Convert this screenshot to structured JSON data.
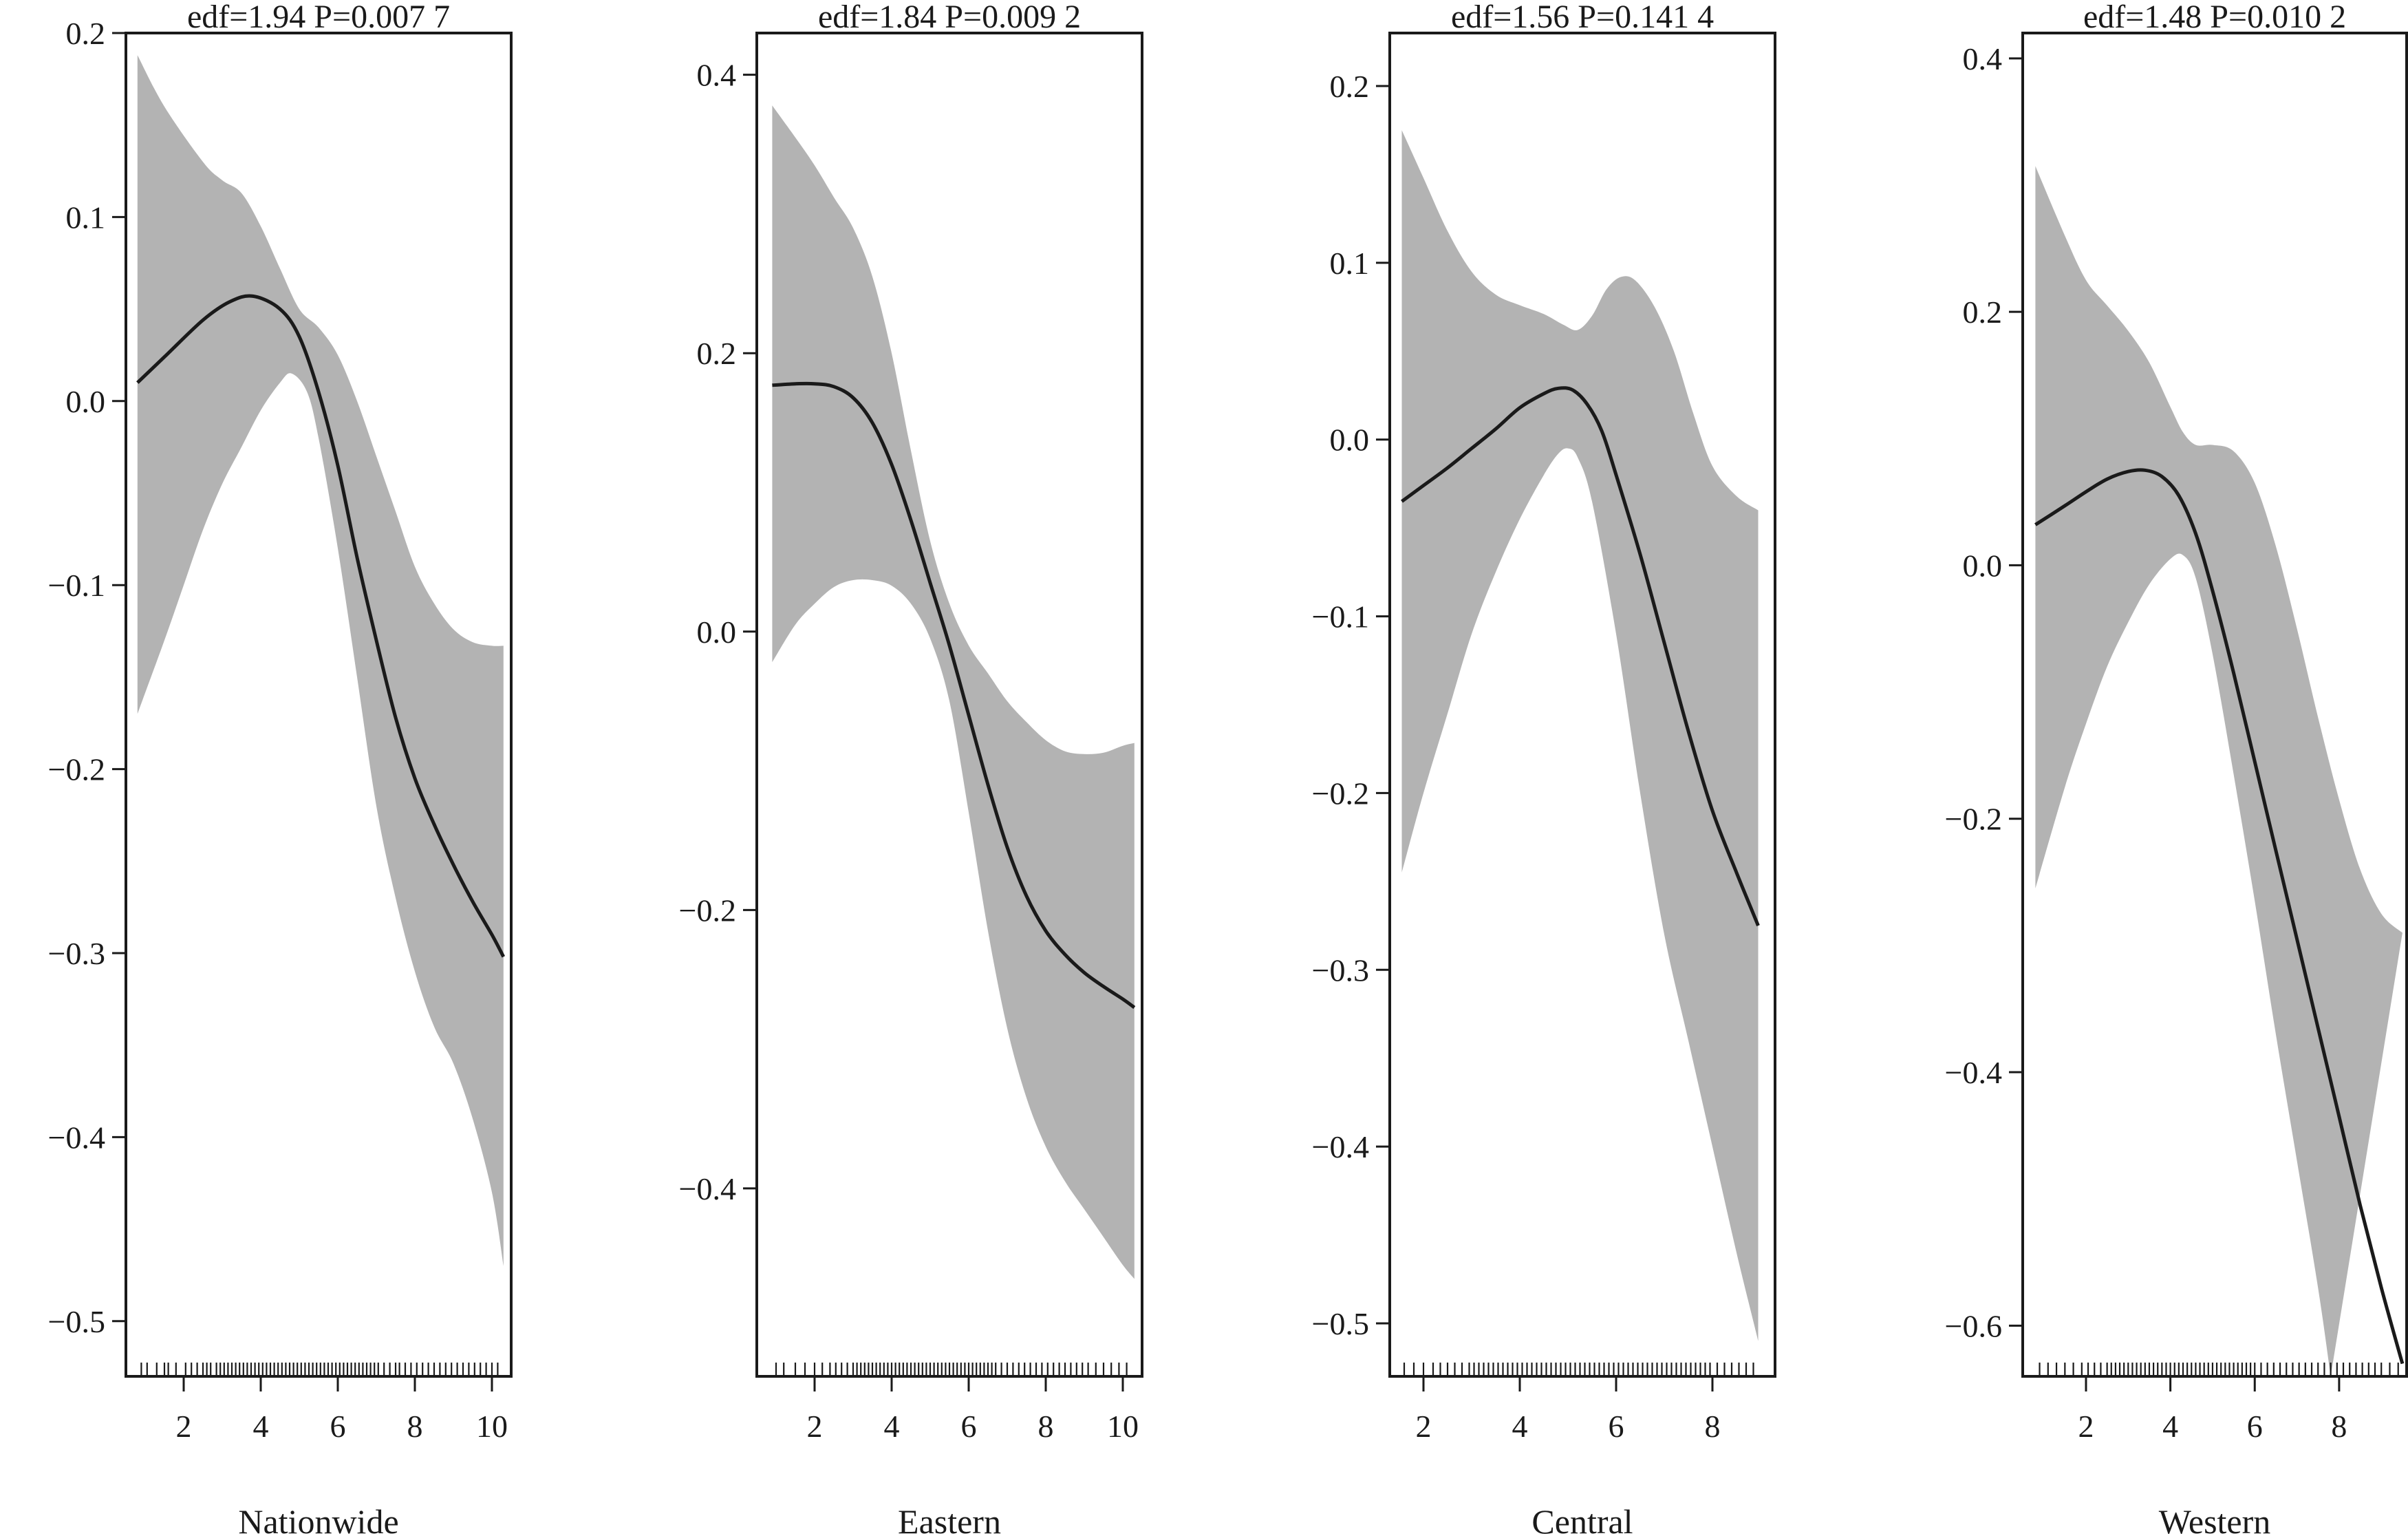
{
  "chart_data": [
    {
      "type": "line",
      "title": "edf=1.94 P=0.007 7",
      "xlabel": "Nationwide",
      "ylabel": "",
      "xlim": [
        0.5,
        10.5
      ],
      "ylim": [
        -0.53,
        0.2
      ],
      "xticks": [
        2,
        4,
        6,
        8,
        10
      ],
      "yticks": [
        0.2,
        0.1,
        0.0,
        -0.1,
        -0.2,
        -0.3,
        -0.4,
        -0.5
      ],
      "ytick_labels": [
        "0.2",
        "0.1",
        "0.0",
        "−0.1",
        "−0.2",
        "−0.3",
        "−0.4",
        "−0.5"
      ],
      "band_color": "#b3b3b3",
      "line_color": "#1a1a1a",
      "grid": false,
      "fit": {
        "x": [
          0.8,
          1.5,
          2.5,
          3.2,
          3.8,
          4.5,
          5.0,
          5.5,
          6.0,
          6.5,
          7.0,
          7.5,
          8.0,
          8.5,
          9.0,
          9.5,
          10.0,
          10.3
        ],
        "y": [
          0.01,
          0.024,
          0.044,
          0.054,
          0.057,
          0.05,
          0.035,
          0.005,
          -0.035,
          -0.085,
          -0.13,
          -0.172,
          -0.205,
          -0.23,
          -0.252,
          -0.272,
          -0.29,
          -0.302
        ]
      },
      "upper": {
        "x": [
          0.8,
          1.5,
          2.5,
          3.0,
          3.5,
          4.0,
          4.5,
          5.0,
          5.5,
          6.0,
          6.5,
          7.0,
          7.5,
          8.0,
          8.5,
          9.0,
          9.5,
          10.0,
          10.3
        ],
        "y": [
          0.188,
          0.16,
          0.13,
          0.12,
          0.113,
          0.095,
          0.072,
          0.05,
          0.04,
          0.025,
          0.0,
          -0.03,
          -0.06,
          -0.09,
          -0.11,
          -0.124,
          -0.131,
          -0.133,
          -0.133
        ]
      },
      "lower": {
        "x": [
          0.8,
          1.5,
          2.0,
          2.5,
          3.0,
          3.5,
          4.0,
          4.5,
          4.8,
          5.2,
          5.5,
          6.0,
          6.5,
          7.0,
          7.5,
          8.0,
          8.5,
          9.0,
          9.5,
          10.0,
          10.3
        ],
        "y": [
          -0.17,
          -0.13,
          -0.1,
          -0.07,
          -0.045,
          -0.025,
          -0.005,
          0.01,
          0.015,
          0.005,
          -0.02,
          -0.08,
          -0.15,
          -0.22,
          -0.27,
          -0.31,
          -0.34,
          -0.36,
          -0.39,
          -0.43,
          -0.47
        ]
      },
      "rug": [
        0.9,
        1.05,
        1.3,
        1.5,
        1.6,
        1.8,
        2.05,
        2.2,
        2.35,
        2.5,
        2.6,
        2.7,
        2.85,
        2.95,
        3.05,
        3.15,
        3.25,
        3.35,
        3.45,
        3.55,
        3.65,
        3.75,
        3.85,
        3.95,
        4.05,
        4.15,
        4.25,
        4.35,
        4.45,
        4.55,
        4.65,
        4.75,
        4.85,
        4.95,
        5.05,
        5.15,
        5.25,
        5.35,
        5.45,
        5.55,
        5.65,
        5.75,
        5.85,
        5.95,
        6.05,
        6.15,
        6.25,
        6.35,
        6.45,
        6.55,
        6.65,
        6.75,
        6.85,
        6.95,
        7.05,
        7.2,
        7.35,
        7.5,
        7.6,
        7.75,
        7.9,
        8.05,
        8.2,
        8.35,
        8.5,
        8.65,
        8.8,
        8.95,
        9.1,
        9.25,
        9.4,
        9.55,
        9.7,
        9.85,
        10.0,
        10.15
      ]
    },
    {
      "type": "line",
      "title": "edf=1.84 P=0.009 2",
      "xlabel": "Eastern",
      "ylabel": "",
      "xlim": [
        0.5,
        10.5
      ],
      "ylim": [
        -0.535,
        0.43
      ],
      "xticks": [
        2,
        4,
        6,
        8,
        10
      ],
      "yticks": [
        0.4,
        0.2,
        0.0,
        -0.2,
        -0.4
      ],
      "ytick_labels": [
        "0.4",
        "0.2",
        "0.0",
        "−0.2",
        "−0.4"
      ],
      "band_color": "#b3b3b3",
      "line_color": "#1a1a1a",
      "grid": false,
      "fit": {
        "x": [
          0.9,
          1.5,
          2.0,
          2.5,
          3.0,
          3.5,
          4.0,
          4.5,
          5.0,
          5.5,
          6.0,
          6.5,
          7.0,
          7.5,
          8.0,
          8.5,
          9.0,
          9.5,
          10.0,
          10.3
        ],
        "y": [
          0.177,
          0.178,
          0.178,
          0.176,
          0.168,
          0.15,
          0.12,
          0.08,
          0.035,
          -0.01,
          -0.06,
          -0.11,
          -0.155,
          -0.19,
          -0.215,
          -0.232,
          -0.245,
          -0.255,
          -0.264,
          -0.27
        ]
      },
      "upper": {
        "x": [
          0.9,
          1.5,
          2.0,
          2.5,
          3.0,
          3.5,
          4.0,
          4.5,
          5.0,
          5.5,
          6.0,
          6.5,
          7.0,
          7.5,
          8.0,
          8.5,
          9.0,
          9.5,
          10.0,
          10.3
        ],
        "y": [
          0.378,
          0.355,
          0.335,
          0.312,
          0.29,
          0.255,
          0.2,
          0.13,
          0.065,
          0.02,
          -0.01,
          -0.03,
          -0.05,
          -0.065,
          -0.078,
          -0.086,
          -0.088,
          -0.087,
          -0.082,
          -0.08
        ]
      },
      "lower": {
        "x": [
          0.9,
          1.5,
          2.0,
          2.5,
          3.0,
          3.5,
          4.0,
          4.5,
          5.0,
          5.5,
          6.0,
          6.5,
          7.0,
          7.5,
          8.0,
          8.5,
          9.0,
          9.5,
          10.0,
          10.3
        ],
        "y": [
          -0.022,
          0.005,
          0.02,
          0.032,
          0.037,
          0.037,
          0.033,
          0.02,
          -0.005,
          -0.05,
          -0.13,
          -0.215,
          -0.285,
          -0.335,
          -0.37,
          -0.395,
          -0.415,
          -0.435,
          -0.455,
          -0.465
        ]
      },
      "rug": [
        1.0,
        1.2,
        1.5,
        1.75,
        2.0,
        2.2,
        2.4,
        2.55,
        2.7,
        2.85,
        3.0,
        3.1,
        3.2,
        3.3,
        3.4,
        3.5,
        3.6,
        3.7,
        3.8,
        3.9,
        4.0,
        4.1,
        4.2,
        4.3,
        4.4,
        4.5,
        4.6,
        4.7,
        4.8,
        4.9,
        5.0,
        5.1,
        5.2,
        5.3,
        5.4,
        5.5,
        5.6,
        5.7,
        5.8,
        5.9,
        6.0,
        6.1,
        6.2,
        6.3,
        6.4,
        6.5,
        6.6,
        6.7,
        6.85,
        7.0,
        7.15,
        7.3,
        7.45,
        7.6,
        7.75,
        7.9,
        8.05,
        8.2,
        8.35,
        8.5,
        8.65,
        8.8,
        8.95,
        9.1,
        9.3,
        9.5,
        9.7,
        9.9,
        10.1
      ]
    },
    {
      "type": "line",
      "title": "edf=1.56 P=0.141 4",
      "xlabel": "Central",
      "ylabel": "",
      "xlim": [
        1.3,
        9.3
      ],
      "ylim": [
        -0.53,
        0.23
      ],
      "xticks": [
        2,
        4,
        6,
        8
      ],
      "yticks": [
        0.2,
        0.1,
        0.0,
        -0.1,
        -0.2,
        -0.3,
        -0.4,
        -0.5
      ],
      "ytick_labels": [
        "0.2",
        "0.1",
        "0.0",
        "−0.1",
        "−0.2",
        "−0.3",
        "−0.4",
        "−0.5"
      ],
      "band_color": "#b3b3b3",
      "line_color": "#1a1a1a",
      "grid": false,
      "fit": {
        "x": [
          1.55,
          2.0,
          2.5,
          3.0,
          3.5,
          4.0,
          4.5,
          4.8,
          5.1,
          5.4,
          5.7,
          6.0,
          6.5,
          7.0,
          7.5,
          8.0,
          8.5,
          8.95
        ],
        "y": [
          -0.035,
          -0.026,
          -0.016,
          -0.005,
          0.006,
          0.018,
          0.026,
          0.029,
          0.028,
          0.02,
          0.005,
          -0.02,
          -0.065,
          -0.115,
          -0.165,
          -0.21,
          -0.245,
          -0.275
        ]
      },
      "upper": {
        "x": [
          1.55,
          2.0,
          2.5,
          3.0,
          3.5,
          4.0,
          4.5,
          4.9,
          5.2,
          5.5,
          5.8,
          6.1,
          6.4,
          6.8,
          7.2,
          7.6,
          8.0,
          8.5,
          8.95
        ],
        "y": [
          0.175,
          0.148,
          0.118,
          0.095,
          0.082,
          0.076,
          0.071,
          0.065,
          0.062,
          0.07,
          0.085,
          0.092,
          0.09,
          0.075,
          0.05,
          0.015,
          -0.015,
          -0.032,
          -0.04
        ]
      },
      "lower": {
        "x": [
          1.55,
          2.0,
          2.5,
          3.0,
          3.5,
          4.0,
          4.5,
          4.8,
          5.0,
          5.2,
          5.5,
          6.0,
          6.5,
          7.0,
          7.5,
          8.0,
          8.5,
          8.95
        ],
        "y": [
          -0.245,
          -0.2,
          -0.155,
          -0.11,
          -0.075,
          -0.045,
          -0.02,
          -0.008,
          -0.005,
          -0.01,
          -0.035,
          -0.11,
          -0.2,
          -0.28,
          -0.34,
          -0.4,
          -0.46,
          -0.51
        ]
      },
      "rug": [
        1.6,
        1.8,
        2.0,
        2.2,
        2.35,
        2.5,
        2.65,
        2.8,
        2.95,
        3.05,
        3.15,
        3.25,
        3.35,
        3.45,
        3.55,
        3.65,
        3.75,
        3.85,
        3.95,
        4.05,
        4.15,
        4.25,
        4.35,
        4.45,
        4.55,
        4.65,
        4.75,
        4.85,
        4.95,
        5.05,
        5.15,
        5.25,
        5.35,
        5.45,
        5.55,
        5.65,
        5.75,
        5.85,
        5.95,
        6.05,
        6.15,
        6.25,
        6.35,
        6.45,
        6.55,
        6.65,
        6.75,
        6.85,
        6.95,
        7.05,
        7.15,
        7.25,
        7.35,
        7.45,
        7.55,
        7.65,
        7.75,
        7.85,
        7.95,
        8.1,
        8.25,
        8.4,
        8.55,
        8.7,
        8.85
      ]
    },
    {
      "type": "line",
      "title": "edf=1.48 P=0.010 2",
      "xlabel": "Western",
      "ylabel": "",
      "xlim": [
        0.5,
        9.6
      ],
      "ylim": [
        -0.64,
        0.42
      ],
      "xticks": [
        2,
        4,
        6,
        8
      ],
      "yticks": [
        0.4,
        0.2,
        0.0,
        -0.2,
        -0.4,
        -0.6
      ],
      "ytick_labels": [
        "0.4",
        "0.2",
        "0.0",
        "−0.2",
        "−0.4",
        "−0.6"
      ],
      "band_color": "#b3b3b3",
      "line_color": "#1a1a1a",
      "grid": false,
      "fit": {
        "x": [
          0.8,
          1.5,
          2.0,
          2.5,
          3.0,
          3.4,
          3.8,
          4.2,
          4.6,
          5.0,
          5.5,
          6.0,
          6.5,
          7.0,
          7.5,
          8.0,
          8.5,
          9.0,
          9.5
        ],
        "y": [
          0.032,
          0.047,
          0.058,
          0.068,
          0.074,
          0.075,
          0.07,
          0.055,
          0.025,
          -0.02,
          -0.085,
          -0.155,
          -0.225,
          -0.295,
          -0.365,
          -0.435,
          -0.505,
          -0.57,
          -0.63
        ]
      },
      "upper": {
        "x": [
          0.8,
          1.5,
          2.0,
          2.5,
          3.0,
          3.5,
          4.0,
          4.3,
          4.6,
          5.0,
          5.5,
          6.0,
          6.5,
          7.0,
          7.5,
          8.0,
          8.5,
          9.0,
          9.5
        ],
        "y": [
          0.315,
          0.26,
          0.225,
          0.205,
          0.185,
          0.16,
          0.125,
          0.105,
          0.095,
          0.095,
          0.09,
          0.065,
          0.015,
          -0.05,
          -0.12,
          -0.185,
          -0.24,
          -0.275,
          -0.29
        ]
      },
      "lower": {
        "x": [
          0.8,
          1.5,
          2.0,
          2.5,
          3.0,
          3.5,
          4.0,
          4.3,
          4.6,
          5.0,
          5.5,
          6.0,
          6.5,
          7.0,
          7.5,
          7.8
        ],
        "y": [
          -0.255,
          -0.175,
          -0.125,
          -0.08,
          -0.045,
          -0.015,
          0.005,
          0.008,
          -0.01,
          -0.07,
          -0.165,
          -0.265,
          -0.37,
          -0.47,
          -0.57,
          -0.64
        ]
      },
      "rug": [
        0.9,
        1.1,
        1.3,
        1.5,
        1.7,
        1.9,
        2.05,
        2.2,
        2.35,
        2.5,
        2.6,
        2.7,
        2.8,
        2.9,
        3.0,
        3.1,
        3.2,
        3.3,
        3.4,
        3.5,
        3.6,
        3.7,
        3.8,
        3.9,
        4.0,
        4.1,
        4.2,
        4.3,
        4.4,
        4.5,
        4.6,
        4.7,
        4.8,
        4.9,
        5.0,
        5.1,
        5.2,
        5.3,
        5.4,
        5.5,
        5.6,
        5.7,
        5.8,
        5.9,
        6.0,
        6.15,
        6.3,
        6.45,
        6.6,
        6.75,
        6.9,
        7.05,
        7.2,
        7.35,
        7.5,
        7.65,
        7.8,
        7.95,
        8.1,
        8.25,
        8.4,
        8.55,
        8.7,
        8.85,
        9.0,
        9.2,
        9.4
      ]
    }
  ]
}
